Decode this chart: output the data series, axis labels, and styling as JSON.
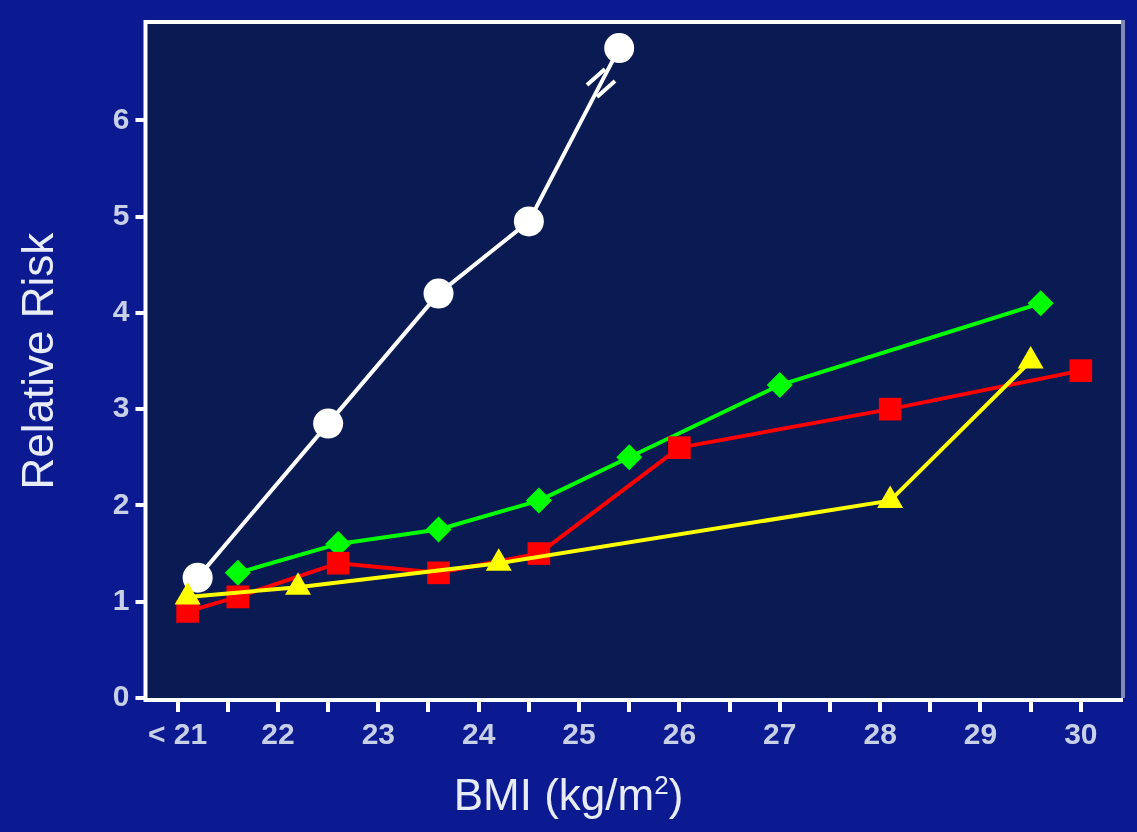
{
  "chart_data": {
    "type": "line",
    "xlabel": "BMI (kg/m$^{2}$)",
    "ylabel": "Relative Risk",
    "xlim": [
      20.7,
      30.4
    ],
    "xticks": [
      {
        "value": 21,
        "label": "< 21"
      },
      {
        "value": 21.5,
        "label": null
      },
      22,
      {
        "value": 22.5,
        "label": null
      },
      23,
      {
        "value": 23.5,
        "label": null
      },
      24,
      {
        "value": 24.5,
        "label": null
      },
      25,
      {
        "value": 25.5,
        "label": null
      },
      26,
      {
        "value": 26.5,
        "label": null
      },
      27,
      {
        "value": 27.5,
        "label": null
      },
      28,
      {
        "value": 28.5,
        "label": null
      },
      29,
      {
        "value": 29.5,
        "label": null
      },
      30
    ],
    "ylim": [
      0,
      7
    ],
    "yticks": [
      0,
      1,
      2,
      3,
      4,
      5,
      6
    ],
    "grid": false,
    "legend": false,
    "line_style": "solid",
    "series": [
      {
        "color": "#ffffff",
        "marker": "circle",
        "x": [
          21.2,
          22.5,
          23.6,
          24.5,
          25.4
        ],
        "values": [
          1.25,
          2.85,
          4.2,
          4.95,
          6.75
        ]
      },
      {
        "color": "#00ff00",
        "marker": "diamond",
        "x": [
          21.6,
          22.6,
          23.6,
          24.6,
          25.5,
          27.0,
          29.6
        ],
        "values": [
          1.3,
          1.6,
          1.75,
          2.05,
          2.5,
          3.25,
          4.1
        ]
      },
      {
        "color": "#ff0000",
        "marker": "square",
        "x": [
          21.1,
          21.6,
          22.6,
          23.6,
          24.6,
          26.0,
          28.1,
          30.0
        ],
        "values": [
          0.9,
          1.05,
          1.4,
          1.3,
          1.5,
          2.6,
          3.0,
          3.4
        ]
      },
      {
        "color": "#ffff00",
        "marker": "triangle",
        "x": [
          21.1,
          22.2,
          24.2,
          28.1,
          29.5
        ],
        "values": [
          1.05,
          1.15,
          1.4,
          2.05,
          3.5
        ]
      }
    ]
  }
}
